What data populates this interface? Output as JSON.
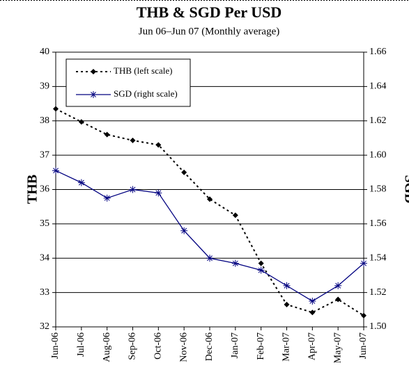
{
  "chart_data": {
    "type": "line",
    "title": "THB & SGD Per USD",
    "subtitle": "Jun 06–Jun 07 (Monthly average)",
    "y_label": "THB",
    "y2_label": "SGD",
    "categories": [
      "Jun-06",
      "Jul-06",
      "Aug-06",
      "Sep-06",
      "Oct-06",
      "Nov-06",
      "Dec-06",
      "Jan-07",
      "Feb-07",
      "Mar-07",
      "Apr-07",
      "May-07",
      "Jun-07"
    ],
    "series": [
      {
        "name": "THB (left scale)",
        "color": "#000000",
        "line_style": "dotted",
        "marker": "diamond",
        "values": [
          38.35,
          37.97,
          37.6,
          37.43,
          37.3,
          36.5,
          35.72,
          35.25,
          33.85,
          32.65,
          32.42,
          32.8,
          32.33
        ]
      },
      {
        "name": "SGD (right scale)",
        "color": "#000080",
        "line_style": "solid",
        "marker": "asterisk",
        "axis": "y2",
        "values": [
          1.591,
          1.584,
          1.575,
          1.58,
          1.578,
          1.556,
          1.54,
          1.537,
          1.533,
          1.524,
          1.515,
          1.524,
          1.537
        ]
      }
    ],
    "ylim": [
      32,
      40
    ],
    "yticks": [
      32,
      33,
      34,
      35,
      36,
      37,
      38,
      39,
      40
    ],
    "y2lim": [
      1.5,
      1.66
    ],
    "y2ticks": [
      {
        "value": 1.5,
        "label": "1.50"
      },
      1.52,
      1.54,
      1.56,
      1.58,
      {
        "value": 1.6,
        "label": "1.60"
      },
      1.62,
      1.64,
      1.66
    ],
    "grid": true,
    "legend": "upper left"
  }
}
